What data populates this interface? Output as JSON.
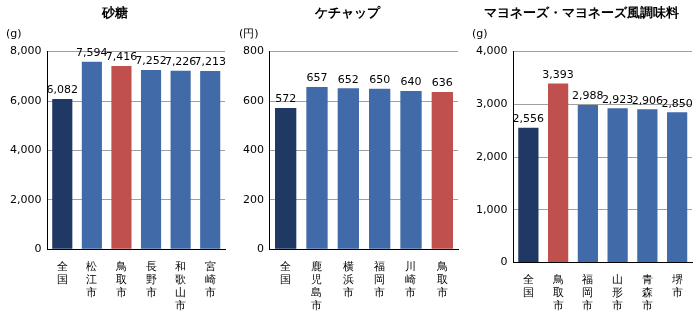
{
  "chart_data": [
    {
      "type": "bar",
      "title": "砂糖",
      "y_label": "(g)",
      "categories": [
        "全国",
        "松江市",
        "鳥取市",
        "長野市",
        "和歌山市",
        "宮崎市"
      ],
      "values": [
        6082,
        7594,
        7416,
        7252,
        7226,
        7213
      ],
      "value_labels": [
        "6,082",
        "7,594",
        "7,416",
        "7,252",
        "7,226",
        "7,213"
      ],
      "colors": [
        "#1f3864",
        "#416aa8",
        "#c0504d",
        "#416aa8",
        "#416aa8",
        "#416aa8"
      ],
      "ylim": [
        0,
        8000
      ],
      "yticks": [
        0,
        {
          "value": 2000,
          "label": "2,000"
        },
        {
          "value": 4000,
          "label": "4,000"
        },
        {
          "value": 6000,
          "label": "6,000"
        },
        {
          "value": 8000,
          "label": "8,000"
        }
      ],
      "grid": true,
      "data_labels": true
    },
    {
      "type": "bar",
      "title": "ケチャップ",
      "y_label": "(円)",
      "categories": [
        "全国",
        "鹿児島市",
        "横浜市",
        "福岡市",
        "川崎市",
        "鳥取市"
      ],
      "values": [
        572,
        657,
        652,
        650,
        640,
        636
      ],
      "colors": [
        "#1f3864",
        "#416aa8",
        "#416aa8",
        "#416aa8",
        "#416aa8",
        "#c0504d"
      ],
      "ylim": [
        0,
        800
      ],
      "yticks": [
        0,
        200,
        400,
        600,
        800
      ],
      "grid": true,
      "data_labels": true
    },
    {
      "type": "bar",
      "title": "マヨネーズ・マヨネーズ風調味料",
      "y_label": "(g)",
      "categories": [
        "全国",
        "鳥取市",
        "福岡市",
        "山形市",
        "青森市",
        "堺市"
      ],
      "values": [
        2556,
        3393,
        2988,
        2923,
        2906,
        2850
      ],
      "value_labels": [
        "2,556",
        "3,393",
        "2,988",
        "2,923",
        "2,906",
        "2,850"
      ],
      "colors": [
        "#1f3864",
        "#c0504d",
        "#416aa8",
        "#416aa8",
        "#416aa8",
        "#416aa8"
      ],
      "ylim": [
        0,
        4000
      ],
      "yticks": [
        0,
        {
          "value": 1000,
          "label": "1,000"
        },
        {
          "value": 2000,
          "label": "2,000"
        },
        {
          "value": 3000,
          "label": "3,000"
        },
        {
          "value": 4000,
          "label": "4,000"
        }
      ],
      "grid": true,
      "data_labels": true
    }
  ]
}
